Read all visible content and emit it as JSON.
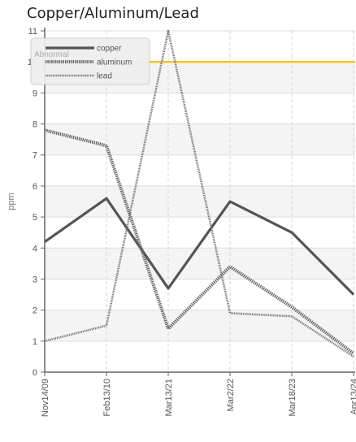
{
  "chart_data": {
    "type": "line",
    "title": "Copper/Aluminum/Lead",
    "ylabel": "ppm",
    "xlabel": "",
    "categories": [
      "Nov14/09",
      "Feb13/10",
      "Mar13/21",
      "Mar2/22",
      "Mar18/23",
      "Apr13/24"
    ],
    "ylim": [
      0,
      11
    ],
    "yticks": [
      0,
      1,
      2,
      3,
      4,
      5,
      6,
      7,
      8,
      9,
      10,
      11
    ],
    "series": [
      {
        "name": "copper",
        "values": [
          4.2,
          5.6,
          2.7,
          5.5,
          4.5,
          2.5
        ],
        "color": "#555555",
        "style": "solid"
      },
      {
        "name": "aluminum",
        "values": [
          7.8,
          7.3,
          1.4,
          3.4,
          2.1,
          0.6
        ],
        "color": "#666666",
        "style": "dotted-thick"
      },
      {
        "name": "lead",
        "values": [
          1.0,
          1.5,
          11.0,
          1.9,
          1.8,
          0.5
        ],
        "color": "#777777",
        "style": "dotted-thin"
      }
    ],
    "threshold": {
      "label": "Abnormal",
      "value": 10,
      "color": "#f2c200"
    },
    "grid": true,
    "legend_position": "top-left"
  }
}
